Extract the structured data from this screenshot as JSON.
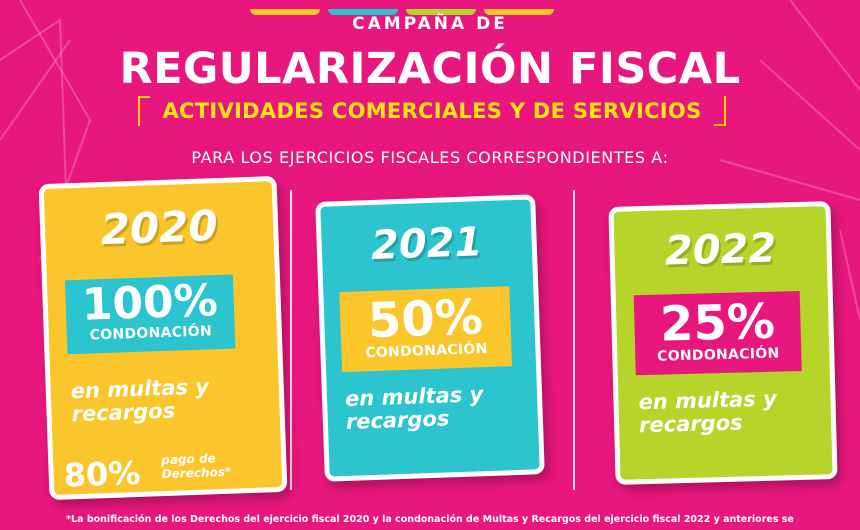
{
  "header": {
    "campaign": "CAMPAÑA DE",
    "title": "REGULARIZACIÓN FISCAL",
    "subtitle": "ACTIVIDADES COMERCIALES Y DE SERVICIOS",
    "intro": "PARA LOS EJERCICIOS FISCALES CORRESPONDIENTES A:"
  },
  "cards": [
    {
      "year": "2020",
      "percent": "100%",
      "condonacion": "CONDONACIÓN",
      "multas": "en multas y recargos",
      "derechos_percent": "80%",
      "derechos_label": "pago de Derechos*",
      "card_color": "#fbc62b",
      "box_color": "#2bc4cf"
    },
    {
      "year": "2021",
      "percent": "50%",
      "condonacion": "CONDONACIÓN",
      "multas": "en multas y recargos",
      "card_color": "#2bc4cf",
      "box_color": "#fbc62b"
    },
    {
      "year": "2022",
      "percent": "25%",
      "condonacion": "CONDONACIÓN",
      "multas": "en multas y recargos",
      "card_color": "#b7d42a",
      "box_color": "#e8177d"
    }
  ],
  "footnote": "*La bonificación de los Derechos del ejercicio fiscal 2020 y la condonación de Multas y Recargos del ejercicio fiscal 2022 y anteriores se",
  "colors": {
    "background": "#e8177d",
    "accent_yellow": "#fce514"
  }
}
